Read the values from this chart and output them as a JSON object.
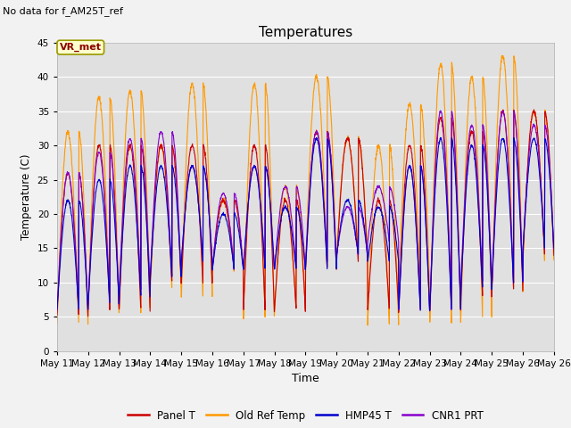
{
  "title": "Temperatures",
  "xlabel": "Time",
  "ylabel": "Temperature (C)",
  "ylim": [
    0,
    45
  ],
  "fig_bg_color": "#f2f2f2",
  "plot_bg_color": "#e0e0e0",
  "grid_color": "#ffffff",
  "no_data_text": "No data for f_AM25T_ref",
  "vr_met_label": "VR_met",
  "legend_entries": [
    "Panel T",
    "Old Ref Temp",
    "HMP45 T",
    "CNR1 PRT"
  ],
  "line_colors": [
    "#cc0000",
    "#ff9900",
    "#0000cc",
    "#8800cc"
  ],
  "x_tick_labels": [
    "May 11",
    "May 12",
    "May 13",
    "May 14",
    "May 15",
    "May 16",
    "May 17",
    "May 18",
    "May 19",
    "May 20",
    "May 21",
    "May 22",
    "May 23",
    "May 24",
    "May 25",
    "May 26"
  ],
  "num_days": 16,
  "points_per_day": 144,
  "panel_peaks": [
    26,
    30,
    30,
    30,
    30,
    22,
    30,
    22,
    32,
    31,
    22,
    30,
    34,
    32,
    35,
    35
  ],
  "panel_mins": [
    5,
    6,
    6,
    10,
    10,
    12,
    6,
    6,
    12,
    13,
    6,
    6,
    6,
    8,
    9,
    14
  ],
  "old_ref_peaks": [
    32,
    37,
    38,
    30,
    39,
    22,
    39,
    24,
    40,
    31,
    30,
    36,
    42,
    40,
    43,
    35
  ],
  "old_ref_mins": [
    4,
    6,
    6,
    9,
    8,
    12,
    5,
    6,
    12,
    14,
    4,
    9,
    4,
    5,
    9,
    13
  ],
  "hmp45_peaks": [
    22,
    25,
    27,
    27,
    27,
    20,
    27,
    21,
    31,
    22,
    21,
    27,
    31,
    30,
    31,
    31
  ],
  "hmp45_mins": [
    6,
    7,
    8,
    11,
    13,
    12,
    12,
    12,
    12,
    14,
    13,
    6,
    6,
    9,
    10,
    15
  ],
  "cnr1_peaks": [
    26,
    29,
    31,
    32,
    27,
    23,
    27,
    24,
    32,
    21,
    24,
    27,
    35,
    33,
    35,
    33
  ],
  "cnr1_mins": [
    6,
    7,
    9,
    11,
    13,
    12,
    12,
    12,
    13,
    14,
    16,
    6,
    6,
    10,
    10,
    15
  ]
}
